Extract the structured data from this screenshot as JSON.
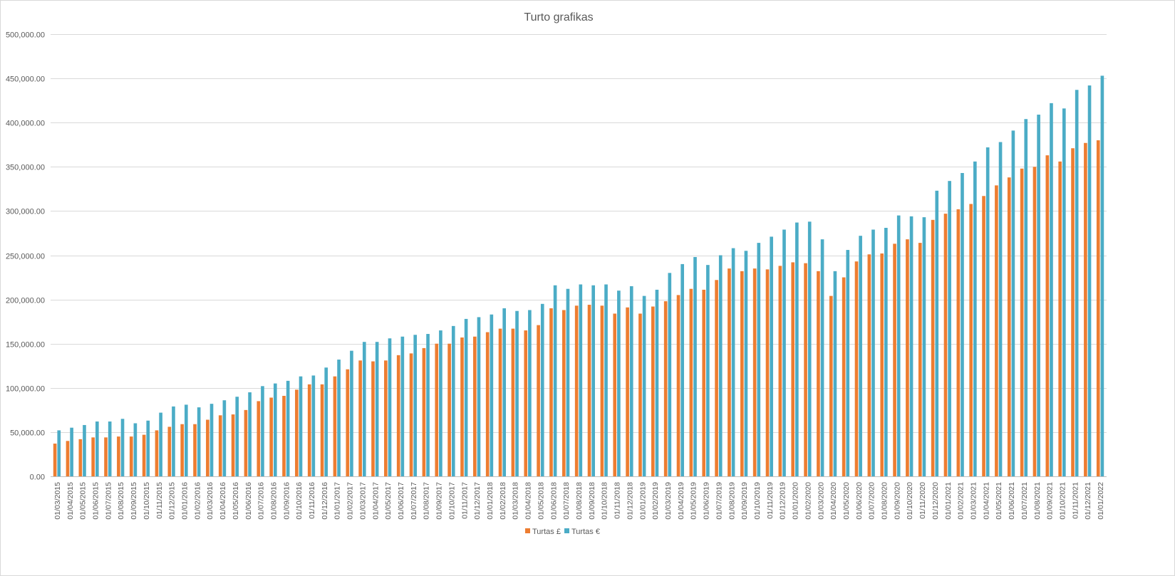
{
  "chart_data": {
    "type": "bar",
    "title": "Turto grafikas",
    "xlabel": "",
    "ylabel": "",
    "ylim": [
      0,
      500000
    ],
    "yticks": [
      "0.00",
      "50,000.00",
      "100,000.00",
      "150,000.00",
      "200,000.00",
      "250,000.00",
      "300,000.00",
      "350,000.00",
      "400,000.00",
      "450,000.00",
      "500,000.00"
    ],
    "grid": true,
    "legend": "bottom",
    "categories": [
      "01/03/2015",
      "01/04/2015",
      "01/05/2015",
      "01/06/2015",
      "01/07/2015",
      "01/08/2015",
      "01/09/2015",
      "01/10/2015",
      "01/11/2015",
      "01/12/2015",
      "01/01/2016",
      "01/02/2016",
      "01/03/2016",
      "01/04/2016",
      "01/05/2016",
      "01/06/2016",
      "01/07/2016",
      "01/08/2016",
      "01/09/2016",
      "01/10/2016",
      "01/11/2016",
      "01/12/2016",
      "01/01/2017",
      "01/02/2017",
      "01/03/2017",
      "01/04/2017",
      "01/05/2017",
      "01/06/2017",
      "01/07/2017",
      "01/08/2017",
      "01/09/2017",
      "01/10/2017",
      "01/11/2017",
      "01/12/2017",
      "01/01/2018",
      "01/02/2018",
      "01/03/2018",
      "01/04/2018",
      "01/05/2018",
      "01/06/2018",
      "01/07/2018",
      "01/08/2018",
      "01/09/2018",
      "01/10/2018",
      "01/11/2018",
      "01/12/2018",
      "01/01/2019",
      "01/02/2019",
      "01/03/2019",
      "01/04/2019",
      "01/05/2019",
      "01/06/2019",
      "01/07/2019",
      "01/08/2019",
      "01/09/2019",
      "01/10/2019",
      "01/11/2019",
      "01/12/2019",
      "01/01/2020",
      "01/02/2020",
      "01/03/2020",
      "01/04/2020",
      "01/05/2020",
      "01/06/2020",
      "01/07/2020",
      "01/08/2020",
      "01/09/2020",
      "01/10/2020",
      "01/11/2020",
      "01/12/2020",
      "01/01/2021",
      "01/02/2021",
      "01/03/2021",
      "01/04/2021",
      "01/05/2021",
      "01/06/2021",
      "01/07/2021",
      "01/08/2021",
      "01/09/2021",
      "01/10/2021",
      "01/11/2021",
      "01/12/2021",
      "01/01/2022"
    ],
    "series": [
      {
        "name": "Turtas £",
        "color": "#ED7D31",
        "values": [
          37000,
          40000,
          42000,
          44000,
          44000,
          45000,
          45000,
          47000,
          52000,
          56000,
          59000,
          59000,
          64000,
          69000,
          70000,
          75000,
          85000,
          89000,
          91000,
          98000,
          104000,
          104000,
          113000,
          121000,
          131000,
          130000,
          131000,
          137000,
          139000,
          145000,
          150000,
          150000,
          157000,
          158000,
          163000,
          167000,
          167000,
          165000,
          171000,
          190000,
          188000,
          193000,
          194000,
          193000,
          184000,
          191000,
          184000,
          192000,
          198000,
          205000,
          212000,
          211000,
          222000,
          235000,
          232000,
          235000,
          234000,
          238000,
          242000,
          241000,
          232000,
          204000,
          225000,
          243000,
          251000,
          252000,
          263000,
          268000,
          264000,
          290000,
          297000,
          302000,
          308000,
          317000,
          329000,
          338000,
          348000,
          350000,
          363000,
          356000,
          371000,
          377000,
          380000
        ]
      },
      {
        "name": "Turtas €",
        "color": "#4BACC6",
        "values": [
          52000,
          55000,
          58000,
          62000,
          62000,
          65000,
          60000,
          63000,
          72000,
          79000,
          81000,
          78000,
          82000,
          86000,
          90000,
          95000,
          102000,
          105000,
          108000,
          113000,
          114000,
          123000,
          132000,
          142000,
          152000,
          152000,
          156000,
          158000,
          160000,
          161000,
          165000,
          170000,
          178000,
          180000,
          183000,
          190000,
          187000,
          188000,
          195000,
          216000,
          212000,
          217000,
          216000,
          217000,
          210000,
          215000,
          204000,
          211000,
          230000,
          240000,
          248000,
          239000,
          250000,
          258000,
          255000,
          264000,
          271000,
          279000,
          287000,
          288000,
          268000,
          232000,
          256000,
          272000,
          279000,
          281000,
          295000,
          294000,
          293000,
          323000,
          334000,
          343000,
          356000,
          372000,
          378000,
          391000,
          404000,
          409000,
          422000,
          416000,
          437000,
          442000,
          453000
        ]
      }
    ]
  }
}
